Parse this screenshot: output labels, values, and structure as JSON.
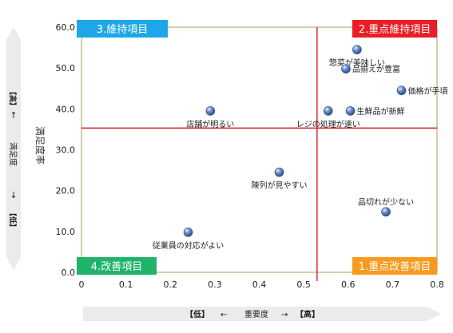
{
  "chart_data": {
    "type": "scatter",
    "title": "",
    "ylabel": "満足度率",
    "xlabel_parts": [
      "【低】",
      "←",
      "重要度",
      "→",
      "【高】"
    ],
    "ylabel_side": {
      "high": "【高】",
      "up_arrow": "↑",
      "text": "満足度",
      "down_arrow": "↓",
      "low": "【低】"
    },
    "xlim": [
      0,
      0.8
    ],
    "ylim": [
      0,
      60
    ],
    "xticks": [
      0,
      0.1,
      0.2,
      0.3,
      0.4,
      0.5,
      0.6,
      0.7,
      0.8
    ],
    "xtick_labels": [
      "0",
      "0.1",
      "0.2",
      "0.3",
      "0.4",
      "0.5",
      "0.6",
      "0.7",
      "0.8"
    ],
    "yticks": [
      0,
      10,
      20,
      30,
      40,
      50,
      60
    ],
    "ytick_labels": [
      "0.0",
      "10.0",
      "20.0",
      "30.0",
      "40.0",
      "50.0",
      "60.0"
    ],
    "grid": false,
    "divider_x": 0.53,
    "divider_y": 35.3,
    "quadrants": [
      {
        "label": "3.維持項目",
        "corner": "top-left",
        "color": "#1ea7e8"
      },
      {
        "label": "2.重点維持項目",
        "corner": "top-right",
        "color": "#ea1c24"
      },
      {
        "label": "4.改善項目",
        "corner": "bottom-left",
        "color": "#1fb36b"
      },
      {
        "label": "1.重点改善項目",
        "corner": "bottom-right",
        "color": "#f79a1e"
      }
    ],
    "points": [
      {
        "label": "惣菜が美味しい",
        "x": 0.62,
        "y": 54.5,
        "anchor": "below"
      },
      {
        "label": "品揃えが豊富",
        "x": 0.595,
        "y": 49.8,
        "anchor": "right"
      },
      {
        "label": "価格が手頃",
        "x": 0.72,
        "y": 44.5,
        "anchor": "right"
      },
      {
        "label": "店舗が明るい",
        "x": 0.29,
        "y": 39.5,
        "anchor": "below"
      },
      {
        "label": "レジの処理が速い",
        "x": 0.555,
        "y": 39.5,
        "anchor": "below"
      },
      {
        "label": "生鮮品が新鮮",
        "x": 0.605,
        "y": 39.5,
        "anchor": "right"
      },
      {
        "label": "陳列が見やすい",
        "x": 0.445,
        "y": 24.5,
        "anchor": "below"
      },
      {
        "label": "品切れが少ない",
        "x": 0.685,
        "y": 14.8,
        "anchor": "above"
      },
      {
        "label": "従業員の対応がよい",
        "x": 0.24,
        "y": 9.8,
        "anchor": "below"
      }
    ],
    "colors": {
      "plot_border": "#a89c58",
      "divider": "#d11f24",
      "point_fill": "#6b8cc4",
      "point_stroke": "#2f4f8a",
      "arrow_band": "#ebebeb",
      "text": "#222222"
    }
  }
}
